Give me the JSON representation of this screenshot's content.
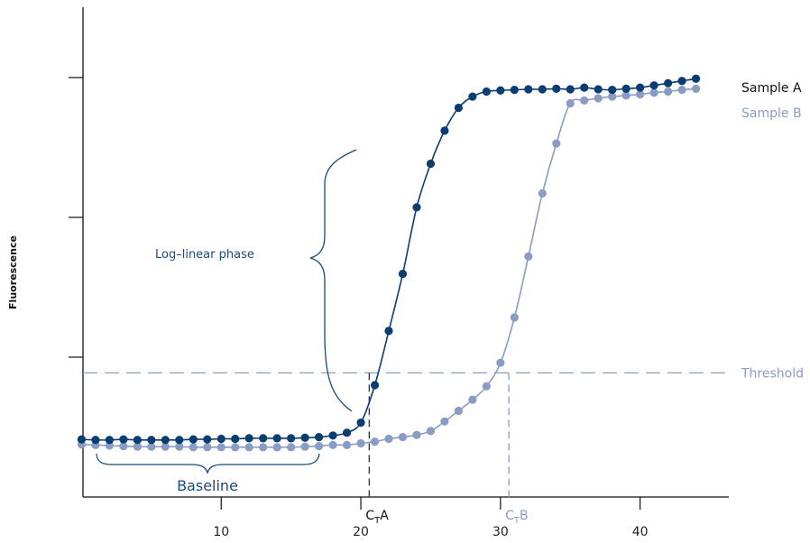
{
  "chart_data": {
    "type": "scatter",
    "title": "",
    "xlabel": "",
    "ylabel": "Fluorescence",
    "xlim": [
      0,
      46
    ],
    "ylim": [
      0,
      100
    ],
    "x_ticks": [
      10,
      20,
      30,
      40
    ],
    "y_ticks": [
      25,
      50,
      75
    ],
    "grid": false,
    "series": [
      {
        "name": "Sample A",
        "color": "#0b3d73",
        "x": [
          0,
          1,
          2,
          3,
          4,
          5,
          6,
          7,
          8,
          9,
          10,
          11,
          12,
          13,
          14,
          15,
          16,
          17,
          18,
          19,
          20,
          21,
          22,
          23,
          24,
          25,
          26,
          27,
          28,
          29,
          30,
          31,
          32,
          33,
          34,
          35,
          36,
          37,
          38,
          39,
          40,
          41,
          42,
          43,
          44
        ],
        "y": [
          10.3,
          10.2,
          10.2,
          10.3,
          10.2,
          10.2,
          10.2,
          10.2,
          10.3,
          10.3,
          10.4,
          10.4,
          10.5,
          10.5,
          10.5,
          10.5,
          10.6,
          10.7,
          11.0,
          11.5,
          13.3,
          20.0,
          29.7,
          39.9,
          51.8,
          59.6,
          65.5,
          69.6,
          71.6,
          72.5,
          72.7,
          72.8,
          72.9,
          72.9,
          73.0,
          72.9,
          73.2,
          72.9,
          72.8,
          73.0,
          73.2,
          73.6,
          74.0,
          74.4,
          74.8
        ]
      },
      {
        "name": "Sample B",
        "color": "#8a9cc4",
        "x": [
          0,
          1,
          2,
          3,
          4,
          5,
          6,
          7,
          8,
          9,
          10,
          11,
          12,
          13,
          14,
          15,
          16,
          17,
          18,
          19,
          20,
          21,
          22,
          23,
          24,
          25,
          26,
          27,
          28,
          29,
          30,
          31,
          32,
          33,
          34,
          35,
          36,
          37,
          38,
          39,
          40,
          41,
          42,
          43,
          44
        ],
        "y": [
          9.4,
          9.3,
          9.2,
          9.1,
          9.0,
          9.0,
          9.0,
          9.0,
          8.9,
          8.9,
          8.9,
          8.9,
          8.9,
          8.9,
          8.9,
          8.9,
          9.0,
          9.1,
          9.3,
          9.3,
          9.6,
          9.9,
          10.4,
          10.7,
          11.1,
          11.8,
          13.5,
          15.4,
          17.4,
          19.8,
          24.0,
          32.1,
          43.0,
          54.3,
          63.2,
          70.4,
          70.9,
          71.3,
          71.6,
          71.8,
          72.0,
          72.3,
          72.5,
          72.8,
          73.0
        ]
      }
    ],
    "threshold": 22.2,
    "ct_values": [
      20.6,
      30.6
    ],
    "annotations": {
      "threshold_label": "Threshold",
      "log_linear_label": "Log–linear phase",
      "baseline_label": "Baseline",
      "ct_a": {
        "sub": "T",
        "suffix": "A"
      },
      "ct_b": {
        "sub": "T",
        "suffix": "B"
      },
      "ct_prefix": "C"
    },
    "legend": {
      "placement": "right",
      "entries": [
        "Sample A",
        "Sample B"
      ]
    }
  }
}
